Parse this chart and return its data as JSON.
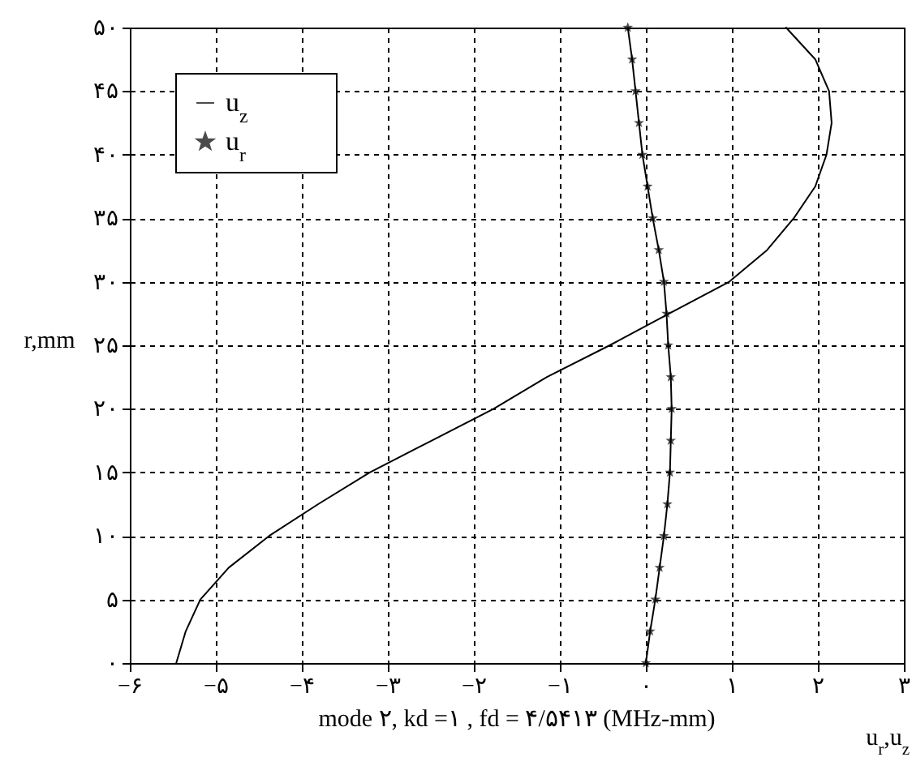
{
  "chart_data": {
    "type": "line",
    "xlabel": "u$_{r}$,u$_{z}$",
    "ylabel": "r,mm",
    "annotations": [
      "mode ۲, kd =۱ , fd = ۴/۵۴۱۳ (MHz-mm)"
    ],
    "xlim": [
      -6,
      3
    ],
    "ylim": [
      0,
      50
    ],
    "xticks": [
      {
        "value": -6,
        "label": "−۶"
      },
      {
        "value": -5,
        "label": "−۵"
      },
      {
        "value": -4,
        "label": "−۴"
      },
      {
        "value": -3,
        "label": "−۳"
      },
      {
        "value": -2,
        "label": "−۲"
      },
      {
        "value": -1,
        "label": "−۱"
      },
      {
        "value": 0,
        "label": "۰"
      },
      {
        "value": 1,
        "label": "۱"
      },
      {
        "value": 2,
        "label": "۲"
      },
      {
        "value": 3,
        "label": "۳"
      }
    ],
    "yticks": [
      {
        "value": 0,
        "label": "۰"
      },
      {
        "value": 5,
        "label": "۵"
      },
      {
        "value": 10,
        "label": "۱۰"
      },
      {
        "value": 15,
        "label": "۱۵"
      },
      {
        "value": 20,
        "label": "۲۰"
      },
      {
        "value": 25,
        "label": "۲۵"
      },
      {
        "value": 30,
        "label": "۳۰"
      },
      {
        "value": 35,
        "label": "۳۵"
      },
      {
        "value": 40,
        "label": "۴۰"
      },
      {
        "value": 45,
        "label": "۴۵"
      },
      {
        "value": 50,
        "label": "۵۰"
      }
    ],
    "grid": true,
    "legend": "top left",
    "line_style": "solid",
    "series": [
      {
        "name": "u$_{z}$",
        "color": "#000000",
        "marker": "none",
        "x": [
          -5.46,
          -5.35,
          -5.18,
          -4.85,
          -4.38,
          -3.81,
          -3.21,
          -2.49,
          -1.77,
          -1.15,
          -0.42,
          0.27,
          0.97,
          1.41,
          1.72,
          1.97,
          2.1,
          2.16,
          2.13,
          1.97,
          1.63
        ],
        "values": [
          0,
          2.5,
          5,
          7.5,
          10,
          12.5,
          15,
          17.5,
          20,
          22.5,
          25,
          27.5,
          30,
          32.5,
          35,
          37.5,
          40,
          42.5,
          45,
          47.5,
          50
        ]
      },
      {
        "name": "u$_{r}$",
        "color": "#000000",
        "marker": "star",
        "x": [
          0,
          0.05,
          0.11,
          0.16,
          0.21,
          0.25,
          0.28,
          0.29,
          0.3,
          0.29,
          0.26,
          0.24,
          0.21,
          0.15,
          0.08,
          0.02,
          -0.04,
          -0.08,
          -0.12,
          -0.16,
          -0.21
        ],
        "values": [
          0,
          2.5,
          5,
          7.5,
          10,
          12.5,
          15,
          17.5,
          20,
          22.5,
          25,
          27.5,
          30,
          32.5,
          35,
          37.5,
          40,
          42.5,
          45,
          47.5,
          50
        ]
      }
    ]
  }
}
